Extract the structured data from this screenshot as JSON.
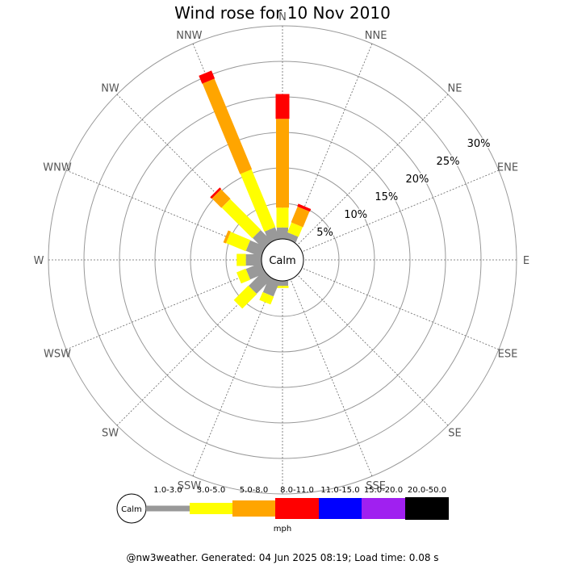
{
  "chart_data": {
    "type": "wind-rose",
    "title": "Wind rose for 10 Nov 2010",
    "directions": [
      "N",
      "NNE",
      "NE",
      "ENE",
      "E",
      "ESE",
      "SE",
      "SSE",
      "S",
      "SSW",
      "SW",
      "WSW",
      "W",
      "WNW",
      "NW",
      "NNW"
    ],
    "radial_labels": [
      "5%",
      "10%",
      "15%",
      "20%",
      "25%",
      "30%"
    ],
    "radial_values": [
      5,
      10,
      15,
      20,
      25,
      30
    ],
    "rmax": 30,
    "calm_label": "Calm",
    "speed_bins": [
      "1.0-3.0",
      "3.0-5.0",
      "5.0-8.0",
      "8.0-11.0",
      "11.0-15.0",
      "15.0-20.0",
      "20.0-50.0"
    ],
    "bin_colors": [
      "#999999",
      "#ffff00",
      "#ffa500",
      "#ff0000",
      "#0000ff",
      "#a020f0",
      "#000000"
    ],
    "unit": "mph",
    "series_by_direction": {
      "N": [
        1.6,
        2.8,
        12.5,
        3.5,
        0,
        0,
        0
      ],
      "NNE": [
        0.9,
        1.5,
        2.4,
        0.4,
        0,
        0,
        0
      ],
      "NE": [
        0,
        0,
        0,
        0,
        0,
        0,
        0
      ],
      "ENE": [
        0,
        0,
        0,
        0,
        0,
        0,
        0
      ],
      "E": [
        0,
        0,
        0,
        0,
        0,
        0,
        0
      ],
      "ESE": [
        0,
        0,
        0,
        0,
        0,
        0,
        0
      ],
      "SE": [
        0,
        0,
        0,
        0,
        0,
        0,
        0
      ],
      "SSE": [
        0,
        0,
        0,
        0,
        0,
        0,
        0
      ],
      "S": [
        0.7,
        0.3,
        0,
        0,
        0,
        0,
        0
      ],
      "SSW": [
        2.3,
        1.2,
        0,
        0,
        0,
        0,
        0
      ],
      "SW": [
        3.0,
        2.9,
        0,
        0,
        0,
        0,
        0
      ],
      "WSW": [
        2.3,
        1.4,
        0,
        0,
        0,
        0,
        0
      ],
      "W": [
        2.2,
        1.3,
        0,
        0,
        0,
        0,
        0
      ],
      "WNW": [
        2.3,
        3.0,
        0.4,
        0,
        0,
        0,
        0
      ],
      "NW": [
        2.2,
        6.1,
        1.9,
        0.3,
        0,
        0,
        0
      ],
      "NNW": [
        1.7,
        8.8,
        13.8,
        1.2,
        0,
        0,
        0
      ]
    }
  },
  "footer": "@nw3weather. Generated: 04 Jun 2025 08:19; Load time: 0.08 s"
}
